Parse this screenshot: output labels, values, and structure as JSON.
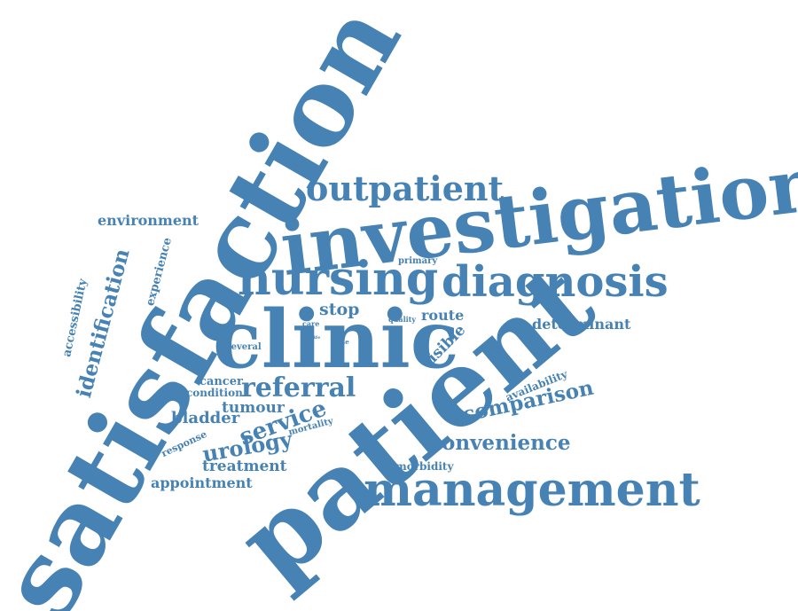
{
  "colors": {
    "word": "#4682b4",
    "background": "#ffffff"
  },
  "words": {
    "satisfaction": "satisfaction",
    "investigation": "investigation",
    "patient": "patient",
    "clinic": "clinic",
    "nursing": "nursing",
    "diagnosis": "diagnosis",
    "management": "management",
    "outpatient": "outpatient",
    "referral": "referral",
    "service": "service",
    "comparison": "comparison",
    "convenience": "convenience",
    "urology": "urology",
    "identification": "identification",
    "environment": "environment",
    "bladder": "bladder",
    "tumour": "tumour",
    "treatment": "treatment",
    "appointment": "appointment",
    "determinant": "determinant",
    "stop": "stop",
    "route": "route",
    "visible": "visible",
    "availability": "availability",
    "accessibility": "accessibility",
    "experience": "experience",
    "cancer": "cancer",
    "condition": "condition",
    "morbidity": "morbidity",
    "response": "response",
    "mortality": "mortality",
    "several": "several",
    "primary": "primary",
    "quality": "quality",
    "care": "care",
    "time": "time",
    "tiny": "life"
  }
}
